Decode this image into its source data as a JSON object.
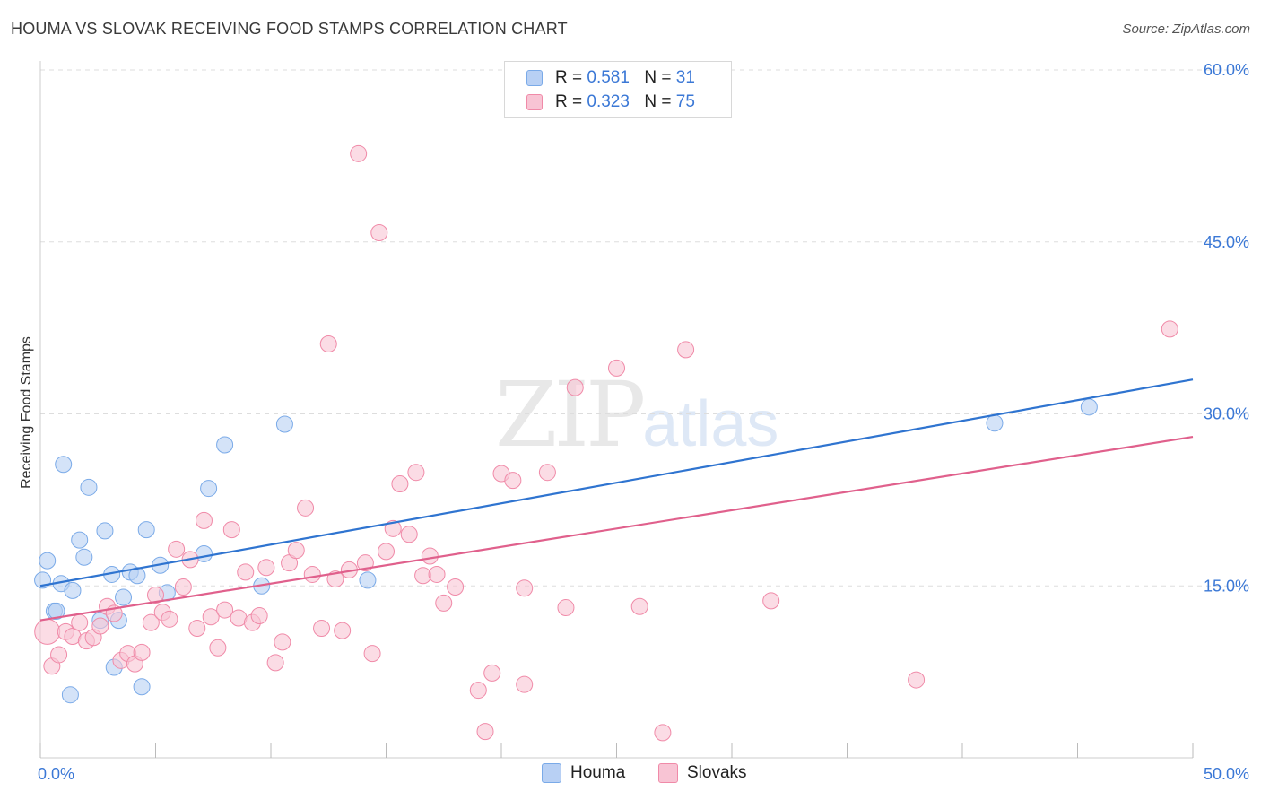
{
  "chart_data": {
    "type": "scatter",
    "title": "HOUMA VS SLOVAK RECEIVING FOOD STAMPS CORRELATION CHART",
    "source": "Source: ZipAtlas.com",
    "xlabel": "",
    "ylabel": "Receiving Food Stamps",
    "xlim": [
      0,
      50
    ],
    "ylim": [
      0,
      60
    ],
    "x_tick_labels": [
      "0.0%",
      "50.0%"
    ],
    "y_ticks": [
      15,
      30,
      45,
      60
    ],
    "y_tick_labels": [
      "15.0%",
      "30.0%",
      "45.0%",
      "60.0%"
    ],
    "watermark": "ZIPatlas",
    "series": [
      {
        "name": "Houma",
        "color": "#7aaae8",
        "fill": "#b8d0f4",
        "line_color": "#2f74d0",
        "R": "0.581",
        "N": "31",
        "trend": [
          [
            0,
            15.0
          ],
          [
            50,
            33.0
          ]
        ],
        "points": [
          [
            0.1,
            15.5
          ],
          [
            0.3,
            17.2
          ],
          [
            0.6,
            12.8
          ],
          [
            0.7,
            12.8
          ],
          [
            0.9,
            15.2
          ],
          [
            1.0,
            25.6
          ],
          [
            1.4,
            14.6
          ],
          [
            1.3,
            5.5
          ],
          [
            1.7,
            19.0
          ],
          [
            1.9,
            17.5
          ],
          [
            2.1,
            23.6
          ],
          [
            2.6,
            12.0
          ],
          [
            2.8,
            19.8
          ],
          [
            3.1,
            16.0
          ],
          [
            3.2,
            7.9
          ],
          [
            3.4,
            12.0
          ],
          [
            3.6,
            14.0
          ],
          [
            3.9,
            16.2
          ],
          [
            4.2,
            15.9
          ],
          [
            4.4,
            6.2
          ],
          [
            4.6,
            19.9
          ],
          [
            5.2,
            16.8
          ],
          [
            5.5,
            14.4
          ],
          [
            7.1,
            17.8
          ],
          [
            7.3,
            23.5
          ],
          [
            8.0,
            27.3
          ],
          [
            9.6,
            15.0
          ],
          [
            10.6,
            29.1
          ],
          [
            14.2,
            15.5
          ],
          [
            41.4,
            29.2
          ],
          [
            45.5,
            30.6
          ]
        ]
      },
      {
        "name": "Slovaks",
        "color": "#f08aa8",
        "fill": "#f8c4d4",
        "line_color": "#e0608c",
        "R": "0.323",
        "N": "75",
        "trend": [
          [
            0,
            12.0
          ],
          [
            50,
            28.0
          ]
        ],
        "points": [
          [
            0.3,
            11.0
          ],
          [
            0.5,
            8.0
          ],
          [
            0.8,
            9.0
          ],
          [
            1.1,
            11.0
          ],
          [
            1.4,
            10.6
          ],
          [
            1.7,
            11.8
          ],
          [
            2.0,
            10.2
          ],
          [
            2.3,
            10.5
          ],
          [
            2.6,
            11.5
          ],
          [
            2.9,
            13.2
          ],
          [
            3.2,
            12.6
          ],
          [
            3.5,
            8.5
          ],
          [
            3.8,
            9.1
          ],
          [
            4.1,
            8.2
          ],
          [
            4.4,
            9.2
          ],
          [
            4.8,
            11.8
          ],
          [
            5.0,
            14.2
          ],
          [
            5.3,
            12.7
          ],
          [
            5.6,
            12.1
          ],
          [
            5.9,
            18.2
          ],
          [
            6.2,
            14.9
          ],
          [
            6.5,
            17.3
          ],
          [
            6.8,
            11.3
          ],
          [
            7.1,
            20.7
          ],
          [
            7.4,
            12.3
          ],
          [
            7.7,
            9.6
          ],
          [
            8.0,
            12.9
          ],
          [
            8.3,
            19.9
          ],
          [
            8.6,
            12.2
          ],
          [
            8.9,
            16.2
          ],
          [
            9.2,
            11.8
          ],
          [
            9.5,
            12.4
          ],
          [
            9.8,
            16.6
          ],
          [
            10.2,
            8.3
          ],
          [
            10.5,
            10.1
          ],
          [
            10.8,
            17.0
          ],
          [
            11.1,
            18.1
          ],
          [
            11.5,
            21.8
          ],
          [
            11.8,
            16.0
          ],
          [
            12.2,
            11.3
          ],
          [
            12.5,
            36.1
          ],
          [
            12.8,
            15.6
          ],
          [
            13.1,
            11.1
          ],
          [
            13.4,
            16.4
          ],
          [
            13.8,
            52.7
          ],
          [
            14.1,
            17.0
          ],
          [
            14.4,
            9.1
          ],
          [
            14.7,
            45.8
          ],
          [
            15.0,
            18.0
          ],
          [
            15.3,
            20.0
          ],
          [
            15.6,
            23.9
          ],
          [
            16.0,
            19.5
          ],
          [
            16.3,
            24.9
          ],
          [
            16.6,
            15.9
          ],
          [
            16.9,
            17.6
          ],
          [
            17.2,
            16.0
          ],
          [
            17.5,
            13.5
          ],
          [
            18.0,
            14.9
          ],
          [
            19.0,
            5.9
          ],
          [
            19.3,
            2.3
          ],
          [
            19.6,
            7.4
          ],
          [
            20.0,
            24.8
          ],
          [
            20.5,
            24.2
          ],
          [
            21.0,
            14.8
          ],
          [
            21.0,
            6.4
          ],
          [
            22.0,
            24.9
          ],
          [
            22.8,
            13.1
          ],
          [
            23.2,
            32.3
          ],
          [
            25.0,
            34.0
          ],
          [
            26.0,
            13.2
          ],
          [
            27.0,
            2.2
          ],
          [
            28.0,
            35.6
          ],
          [
            31.7,
            13.7
          ],
          [
            38.0,
            6.8
          ],
          [
            49.0,
            37.4
          ]
        ]
      }
    ],
    "legend": [
      {
        "r_label": "R =",
        "r_value": "0.581",
        "n_label": "N =",
        "n_value": "31"
      },
      {
        "r_label": "R =",
        "r_value": "0.323",
        "n_label": "N =",
        "n_value": "75"
      }
    ]
  }
}
